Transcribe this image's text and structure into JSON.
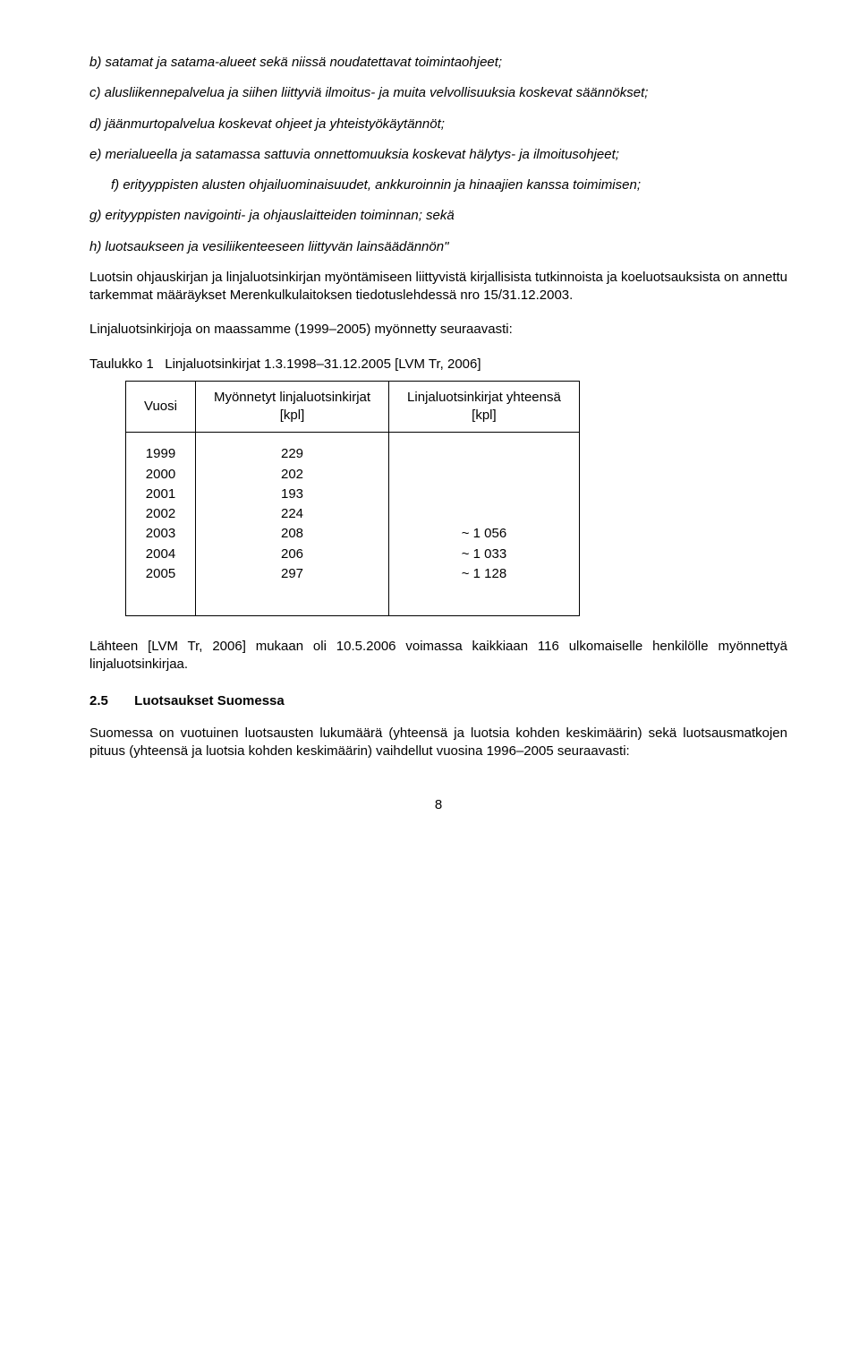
{
  "list_b": "b) satamat ja satama-alueet sekä niissä noudatettavat toimintaohjeet;",
  "list_c": "c) alusliikennepalvelua ja siihen liittyviä ilmoitus- ja muita velvollisuuksia koskevat säännökset;",
  "list_d": "d) jäänmurtopalvelua koskevat ohjeet ja yhteistyökäytännöt;",
  "list_e": "e) merialueella ja satamassa sattuvia onnettomuuksia koskevat hälytys- ja ilmoitusohjeet;",
  "list_f": "f) erityyppisten alusten ohjailuominaisuudet, ankkuroinnin ja hinaajien kanssa toimimisen;",
  "list_g": "g) erityyppisten navigointi- ja ohjauslaitteiden toiminnan; sekä",
  "list_h": "h) luotsaukseen ja vesiliikenteeseen liittyvän lainsäädännön\"",
  "para1": "Luotsin ohjauskirjan ja linjaluotsinkirjan myöntämiseen liittyvistä kirjallisista tutkinnoista ja koeluotsauksista on annettu tarkemmat määräykset Merenkulkulaitoksen tiedotuslehdessä nro 15/31.12.2003.",
  "para2": "Linjaluotsinkirjoja on maassamme (1999–2005) myönnetty seuraavasti:",
  "table_caption_label": "Taulukko 1",
  "table_caption_text": "Linjaluotsinkirjat 1.3.1998–31.12.2005 [LVM Tr, 2006]",
  "table": {
    "headers": {
      "col1": "Vuosi",
      "col2_l1": "Myönnetyt linjaluotsinkirjat",
      "col2_l2": "[kpl]",
      "col3_l1": "Linjaluotsinkirjat yhteensä",
      "col3_l2": "[kpl]"
    },
    "rows": [
      {
        "year": "1999",
        "issued": "229",
        "total": ""
      },
      {
        "year": "2000",
        "issued": "202",
        "total": ""
      },
      {
        "year": "2001",
        "issued": "193",
        "total": ""
      },
      {
        "year": "2002",
        "issued": "224",
        "total": ""
      },
      {
        "year": "2003",
        "issued": "208",
        "total": "~ 1 056"
      },
      {
        "year": "2004",
        "issued": "206",
        "total": "~ 1 033"
      },
      {
        "year": "2005",
        "issued": "297",
        "total": "~ 1 128"
      }
    ]
  },
  "para3": "Lähteen [LVM Tr, 2006] mukaan oli 10.5.2006 voimassa kaikkiaan 116 ulkomaiselle henkilölle myönnettyä linjaluotsinkirjaa.",
  "section_num": "2.5",
  "section_title": "Luotsaukset Suomessa",
  "para4": "Suomessa on vuotuinen luotsausten lukumäärä (yhteensä ja luotsia kohden keskimäärin) sekä luotsausmatkojen pituus (yhteensä ja luotsia kohden keskimäärin) vaihdellut vuosina 1996–2005 seuraavasti:",
  "page_number": "8"
}
